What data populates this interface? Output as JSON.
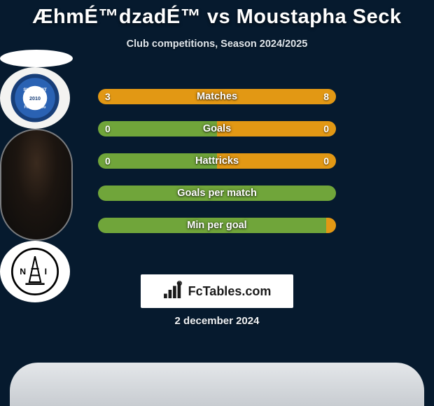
{
  "header": {
    "title": "ÆhmÉ™dzadÉ™ vs Moustapha Seck",
    "subtitle": "Club competitions, Season 2024/2025"
  },
  "stats": {
    "left_fill_color": "#70a53a",
    "right_fill_color": "#e29814",
    "track_color": "#70a53a",
    "rows": [
      {
        "label": "Matches",
        "left": "3",
        "right": "8",
        "left_pct": 27,
        "right_pct": 73,
        "show_vals": true,
        "left_color_override": "#e29814"
      },
      {
        "label": "Goals",
        "left": "0",
        "right": "0",
        "left_pct": 50,
        "right_pct": 50,
        "show_vals": true
      },
      {
        "label": "Hattricks",
        "left": "0",
        "right": "0",
        "left_pct": 50,
        "right_pct": 50,
        "show_vals": true
      },
      {
        "label": "Goals per match",
        "left": "",
        "right": "",
        "left_pct": 100,
        "right_pct": 0,
        "show_vals": false
      },
      {
        "label": "Min per goal",
        "left": "",
        "right": "",
        "left_pct": 96,
        "right_pct": 4,
        "show_vals": false,
        "right_color_override": "#e29814"
      }
    ]
  },
  "branding": {
    "text": "FcTables.com"
  },
  "footer": {
    "date": "2 december 2024"
  },
  "palette": {
    "bg": "#061a2e",
    "text": "#ffffff",
    "subtitle": "#dfe6ec",
    "brand_bg": "#ffffff"
  }
}
